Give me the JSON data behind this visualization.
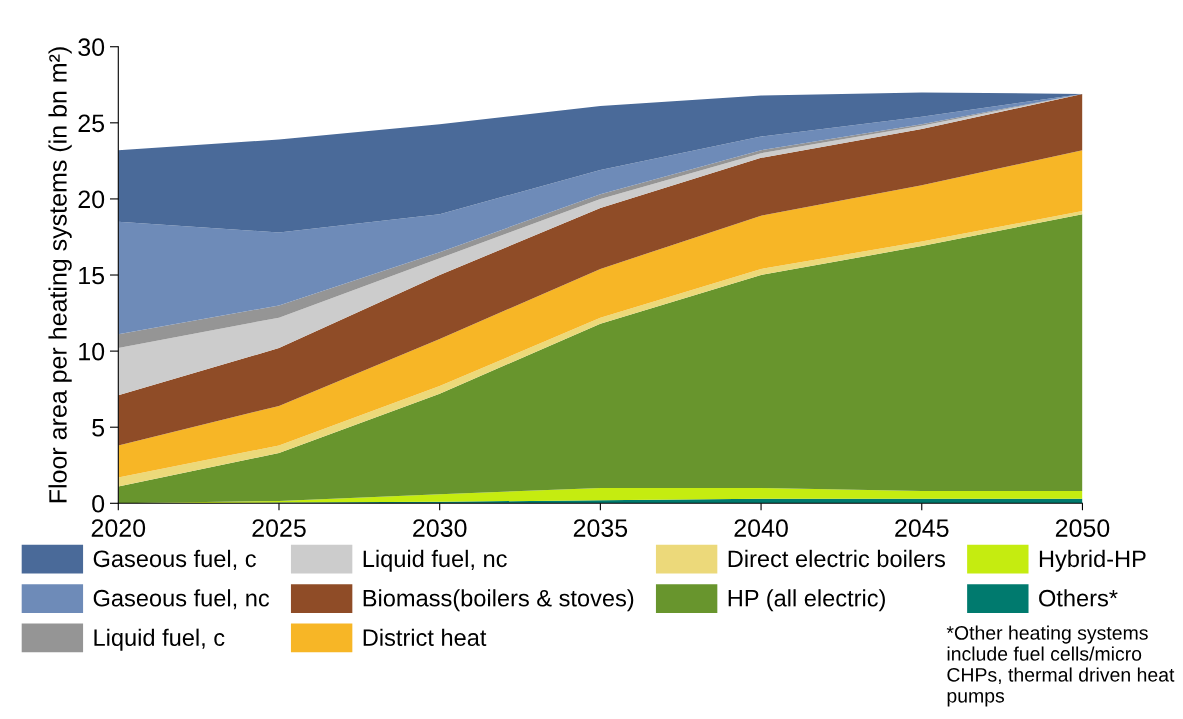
{
  "chart_data": {
    "type": "area",
    "stacked": true,
    "ylabel": "Floor area per heating systems (in bn m²)",
    "x": [
      2020,
      2025,
      2030,
      2035,
      2040,
      2045,
      2050
    ],
    "xlim": [
      2020,
      2050
    ],
    "xticks": [
      2020,
      2025,
      2030,
      2035,
      2040,
      2045,
      2050
    ],
    "ylim": [
      0,
      30
    ],
    "yticks": [
      0,
      5,
      10,
      15,
      20,
      25,
      30
    ],
    "grid": false,
    "legend": "bottom",
    "series": [
      {
        "name": "Others*",
        "color": "#007a6e",
        "values": [
          0,
          0.05,
          0.1,
          0.2,
          0.3,
          0.3,
          0.3
        ]
      },
      {
        "name": "Hybrid-HP",
        "color": "#c5ec10",
        "values": [
          0,
          0.1,
          0.5,
          0.8,
          0.7,
          0.5,
          0.5
        ]
      },
      {
        "name": "HP (all electric)",
        "color": "#68952d",
        "values": [
          1.1,
          3.15,
          6.6,
          10.8,
          14.0,
          16.1,
          18.2
        ]
      },
      {
        "name": "Direct electric boilers",
        "color": "#ecd97a",
        "values": [
          0.6,
          0.5,
          0.5,
          0.4,
          0.4,
          0.3,
          0.2
        ]
      },
      {
        "name": "District heat",
        "color": "#f7b626",
        "values": [
          2.1,
          2.6,
          3.1,
          3.2,
          3.5,
          3.7,
          4.0
        ]
      },
      {
        "name": "Biomass(boilers & stoves)",
        "color": "#8f4c27",
        "values": [
          3.3,
          3.8,
          4.2,
          4.0,
          3.8,
          3.7,
          3.7
        ]
      },
      {
        "name": "Liquid fuel, nc",
        "color": "#cccccc",
        "values": [
          3.1,
          2.0,
          1.1,
          0.6,
          0.3,
          0.2,
          0
        ]
      },
      {
        "name": "Liquid fuel, c",
        "color": "#959595",
        "values": [
          0.9,
          0.8,
          0.4,
          0.3,
          0.2,
          0.1,
          0
        ]
      },
      {
        "name": "Gaseous fuel, nc",
        "color": "#6e8bb8",
        "values": [
          7.4,
          4.8,
          2.5,
          1.6,
          0.9,
          0.5,
          0
        ]
      },
      {
        "name": "Gaseous fuel, c",
        "color": "#4a6a99",
        "values": [
          4.7,
          6.1,
          5.9,
          4.2,
          2.7,
          1.6,
          0
        ]
      }
    ],
    "annotations": [
      "*Other heating systems include fuel cells/micro CHPs, thermal driven heat pumps"
    ]
  }
}
